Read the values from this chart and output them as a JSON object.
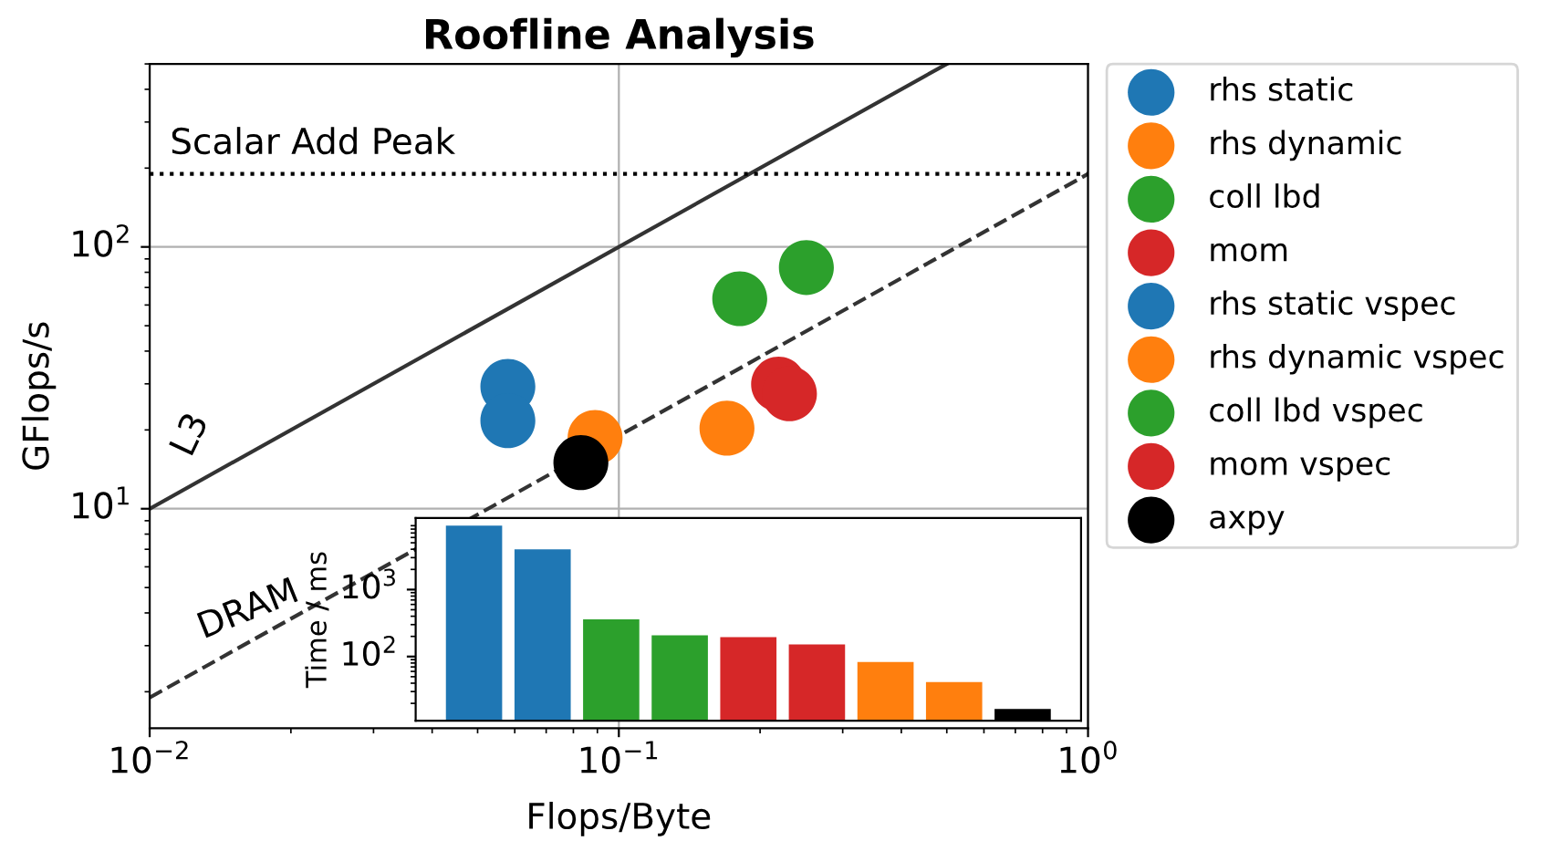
{
  "chart_data": [
    {
      "type": "scatter",
      "title": "Roofline Analysis",
      "xlabel": "Flops/Byte",
      "ylabel": "GFlops/s",
      "log": "xy",
      "grid": true,
      "legend": "right",
      "marker": "circle",
      "xlim": [
        0.01,
        1
      ],
      "ylim": [
        1.45,
        500
      ],
      "xticks": [
        {
          "value": 0.01,
          "label": "10$^{−2}$"
        },
        {
          "value": 0.1,
          "label": "10$^{−1}$"
        },
        {
          "value": 1,
          "label": "10$^{0}$"
        }
      ],
      "yticks": [
        {
          "value": 10,
          "label": "10$^{1}$"
        },
        {
          "value": 100,
          "label": "10$^{2}$"
        }
      ],
      "ref_lines": [
        {
          "axis": "y",
          "value": 190,
          "label": "Scalar Add Peak",
          "color": "#000000",
          "line_style": "dotted"
        }
      ],
      "series": [
        {
          "name": "rhs static",
          "color": "#1f77b4",
          "x": [
            0.058
          ],
          "values": [
            21.7
          ]
        },
        {
          "name": "rhs dynamic",
          "color": "#ff7f0e",
          "x": [
            0.17
          ],
          "values": [
            20.3
          ]
        },
        {
          "name": "coll lbd",
          "color": "#2ca02c",
          "x": [
            0.251
          ],
          "values": [
            83.4
          ]
        },
        {
          "name": "mom",
          "color": "#d62728",
          "x": [
            0.231
          ],
          "values": [
            27.5
          ]
        },
        {
          "name": "rhs static vspec",
          "color": "#1f77b4",
          "x": [
            0.058
          ],
          "values": [
            29.3
          ]
        },
        {
          "name": "rhs dynamic vspec",
          "color": "#ff7f0e",
          "x": [
            0.089
          ],
          "values": [
            18.7
          ]
        },
        {
          "name": "coll lbd vspec",
          "color": "#2ca02c",
          "x": [
            0.181
          ],
          "values": [
            63.4
          ]
        },
        {
          "name": "mom vspec",
          "color": "#d62728",
          "x": [
            0.219
          ],
          "values": [
            29.9
          ]
        },
        {
          "name": "axpy",
          "color": "#000000",
          "x": [
            0.083
          ],
          "values": [
            15.0
          ]
        },
        {
          "name": "L3",
          "type": "line",
          "marker": "none",
          "color": "#333333",
          "line_style": "solid",
          "x": [
            0.01,
            0.5
          ],
          "values": [
            10,
            500
          ]
        },
        {
          "name": "DRAM",
          "type": "line",
          "marker": "none",
          "color": "#333333",
          "line_style": "dashed",
          "x": [
            0.01,
            1
          ],
          "values": [
            1.9,
            190
          ]
        }
      ]
    },
    {
      "type": "bar",
      "ylabel": "Time / ms",
      "log": "y",
      "tick_labels": "y",
      "ylim": [
        11,
        11700
      ],
      "yticks": [
        {
          "value": 100,
          "label": "10$^{2}$"
        },
        {
          "value": 1000,
          "label": "10$^{3}$"
        }
      ],
      "categories": [
        null,
        null,
        null,
        null,
        null,
        null,
        null,
        null,
        null
      ],
      "values": [
        9000,
        4000,
        360,
        208,
        195,
        152,
        83,
        41.5,
        16.5
      ],
      "colors": [
        "#1f77b4",
        "#1f77b4",
        "#2ca02c",
        "#2ca02c",
        "#d62728",
        "#d62728",
        "#ff7f0e",
        "#ff7f0e",
        "#000000"
      ]
    }
  ]
}
